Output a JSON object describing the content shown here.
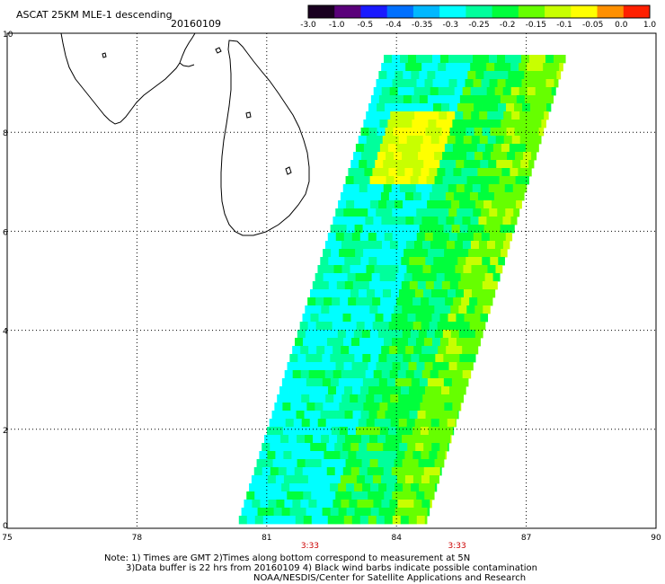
{
  "title": {
    "product": "ASCAT 25KM MLE-1 descending",
    "date": "20160109"
  },
  "colorbar": {
    "ticks": [
      "-3.0",
      "-1.0",
      "-0.5",
      "-0.4",
      "-0.35",
      "-0.3",
      "-0.25",
      "-0.2",
      "-0.15",
      "-0.1",
      "-0.05",
      "0.0",
      "1.0"
    ],
    "colors": [
      "#1a0020",
      "#5a007a",
      "#1a1aff",
      "#0070ff",
      "#00b8ff",
      "#00ffff",
      "#00ff9c",
      "#00ff3c",
      "#66ff00",
      "#c8ff00",
      "#ffff00",
      "#ff9000",
      "#ff2000"
    ]
  },
  "axes": {
    "x_ticks": [
      "75",
      "78",
      "81",
      "84",
      "87",
      "90"
    ],
    "y_ticks": [
      "0",
      "2",
      "4",
      "6",
      "8",
      "10"
    ],
    "x_range": [
      75,
      90
    ],
    "y_range": [
      0,
      10
    ]
  },
  "swath": {
    "corners_lonlat": [
      [
        80.3,
        0.1
      ],
      [
        84.65,
        0.1
      ],
      [
        87.9,
        9.55
      ],
      [
        83.7,
        9.55
      ]
    ],
    "dominant_colors": [
      "#00ffff",
      "#00ff9c",
      "#00ff3c",
      "#66ff00",
      "#c8ff00",
      "#ffff00"
    ]
  },
  "time_labels": [
    {
      "text": "3:33",
      "lon": 82.0
    },
    {
      "text": "3:33",
      "lon": 85.4
    }
  ],
  "notes": {
    "line1": "Note: 1) Times are GMT 2)Times along bottom correspond to measurement at 5N",
    "line2": "3)Data buffer is 22 hrs from 20160109 4) Black wind barbs indicate possible contamination",
    "line3": "NOAA/NESDIS/Center for Satellite Applications and Research"
  }
}
